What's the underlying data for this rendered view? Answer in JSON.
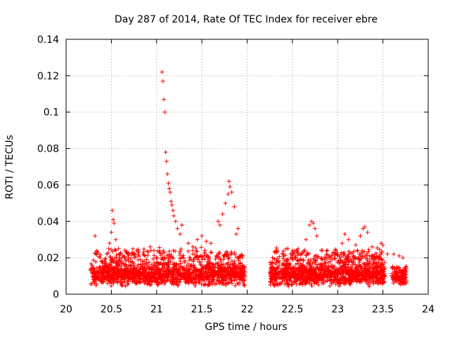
{
  "chart_data": {
    "type": "scatter",
    "title": "Day 287 of 2014, Rate Of TEC Index for receiver ebre",
    "xlabel": "GPS time / hours",
    "ylabel": "ROTI / TECUs",
    "xlim": [
      20,
      24
    ],
    "ylim": [
      0,
      0.14
    ],
    "xticks": [
      20,
      20.5,
      21,
      21.5,
      22,
      22.5,
      23,
      23.5,
      24
    ],
    "xtick_labels": [
      "20",
      "20.5",
      "21",
      "21.5",
      "22",
      "22.5",
      "23",
      "23.5",
      "24"
    ],
    "yticks": [
      0,
      0.02,
      0.04,
      0.06,
      0.08,
      0.1,
      0.12,
      0.14
    ],
    "ytick_labels": [
      "0",
      "0.02",
      "0.04",
      "0.06",
      "0.08",
      "0.1",
      "0.12",
      "0.14"
    ],
    "grid": true,
    "marker": "+",
    "series": [
      {
        "name": "ROTI",
        "color": "#ff0000",
        "points": [
          [
            20.32,
            0.032
          ],
          [
            20.45,
            0.022
          ],
          [
            20.48,
            0.028
          ],
          [
            20.5,
            0.034
          ],
          [
            20.51,
            0.046
          ],
          [
            20.52,
            0.041
          ],
          [
            20.53,
            0.039
          ],
          [
            20.55,
            0.03
          ],
          [
            20.58,
            0.025
          ],
          [
            20.78,
            0.024
          ],
          [
            20.85,
            0.022
          ],
          [
            20.93,
            0.026
          ],
          [
            20.97,
            0.024
          ],
          [
            21.06,
            0.122
          ],
          [
            21.07,
            0.117
          ],
          [
            21.08,
            0.107
          ],
          [
            21.09,
            0.1
          ],
          [
            21.1,
            0.078
          ],
          [
            21.11,
            0.073
          ],
          [
            21.12,
            0.066
          ],
          [
            21.13,
            0.061
          ],
          [
            21.14,
            0.058
          ],
          [
            21.15,
            0.056
          ],
          [
            21.16,
            0.051
          ],
          [
            21.17,
            0.049
          ],
          [
            21.18,
            0.046
          ],
          [
            21.19,
            0.043
          ],
          [
            21.21,
            0.04
          ],
          [
            21.23,
            0.036
          ],
          [
            21.26,
            0.033
          ],
          [
            21.28,
            0.038
          ],
          [
            21.35,
            0.028
          ],
          [
            21.4,
            0.026
          ],
          [
            21.45,
            0.03
          ],
          [
            21.5,
            0.032
          ],
          [
            21.55,
            0.029
          ],
          [
            21.6,
            0.028
          ],
          [
            21.68,
            0.04
          ],
          [
            21.7,
            0.038
          ],
          [
            21.73,
            0.044
          ],
          [
            21.76,
            0.05
          ],
          [
            21.79,
            0.055
          ],
          [
            21.8,
            0.062
          ],
          [
            21.81,
            0.059
          ],
          [
            21.83,
            0.056
          ],
          [
            21.86,
            0.048
          ],
          [
            21.88,
            0.033
          ],
          [
            21.9,
            0.036
          ],
          [
            22.28,
            0.02
          ],
          [
            22.45,
            0.025
          ],
          [
            22.5,
            0.024
          ],
          [
            22.6,
            0.022
          ],
          [
            22.65,
            0.03
          ],
          [
            22.69,
            0.038
          ],
          [
            22.71,
            0.04
          ],
          [
            22.73,
            0.039
          ],
          [
            22.75,
            0.036
          ],
          [
            22.77,
            0.032
          ],
          [
            22.95,
            0.023
          ],
          [
            23.05,
            0.028
          ],
          [
            23.08,
            0.033
          ],
          [
            23.12,
            0.03
          ],
          [
            23.2,
            0.027
          ],
          [
            23.25,
            0.032
          ],
          [
            23.28,
            0.036
          ],
          [
            23.3,
            0.037
          ],
          [
            23.33,
            0.034
          ],
          [
            23.38,
            0.026
          ],
          [
            23.48,
            0.028
          ],
          [
            23.5,
            0.027
          ],
          [
            23.55,
            0.022
          ],
          [
            23.62,
            0.022
          ],
          [
            23.68,
            0.021
          ],
          [
            23.72,
            0.02
          ]
        ],
        "dense_bands": [
          {
            "x_range": [
              20.27,
              21.98
            ],
            "y_range": [
              0.004,
              0.018
            ],
            "count": 1400
          },
          {
            "x_range": [
              22.25,
              23.52
            ],
            "y_range": [
              0.004,
              0.018
            ],
            "count": 1100
          },
          {
            "x_range": [
              23.6,
              23.76
            ],
            "y_range": [
              0.004,
              0.016
            ],
            "count": 130
          },
          {
            "x_range": [
              20.3,
              21.95
            ],
            "y_range": [
              0.015,
              0.026
            ],
            "count": 260
          },
          {
            "x_range": [
              22.3,
              23.5
            ],
            "y_range": [
              0.015,
              0.026
            ],
            "count": 240
          }
        ]
      }
    ]
  }
}
